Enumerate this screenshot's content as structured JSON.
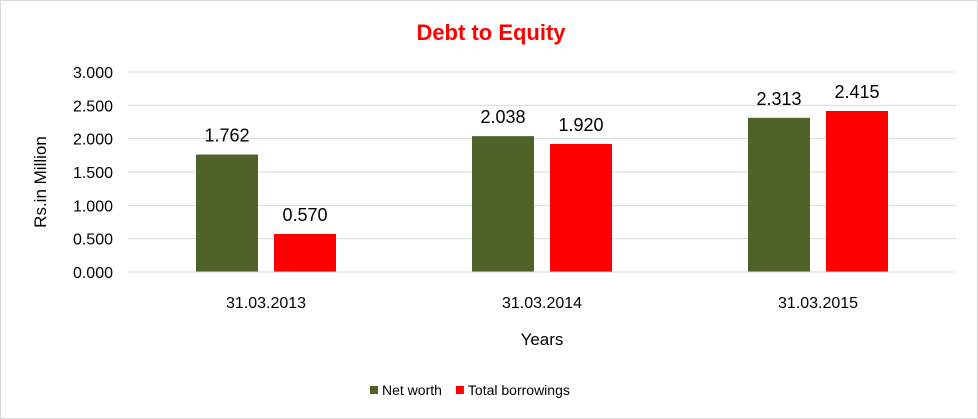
{
  "chart_data": {
    "type": "bar",
    "title": "Debt to Equity",
    "title_color": "#ff0000",
    "xlabel": "Years",
    "ylabel": "Rs.in Million",
    "categories": [
      "31.03.2013",
      "31.03.2014",
      "31.03.2015"
    ],
    "ylim": [
      0,
      3
    ],
    "yticks": [
      "0.000",
      "0.500",
      "1.000",
      "1.500",
      "2.000",
      "2.500",
      "3.000"
    ],
    "ytick_values": [
      0,
      0.5,
      1,
      1.5,
      2,
      2.5,
      3
    ],
    "grid": true,
    "legend_position": "bottom",
    "series": [
      {
        "name": "Net worth",
        "color": "#4f6228",
        "values": [
          1.762,
          2.038,
          2.313
        ],
        "labels": [
          "1.762",
          "2.038",
          "2.313"
        ]
      },
      {
        "name": "Total borrowings",
        "color": "#ff0000",
        "values": [
          0.57,
          1.92,
          2.415
        ],
        "labels": [
          "0.570",
          "1.920",
          "2.415"
        ]
      }
    ]
  }
}
